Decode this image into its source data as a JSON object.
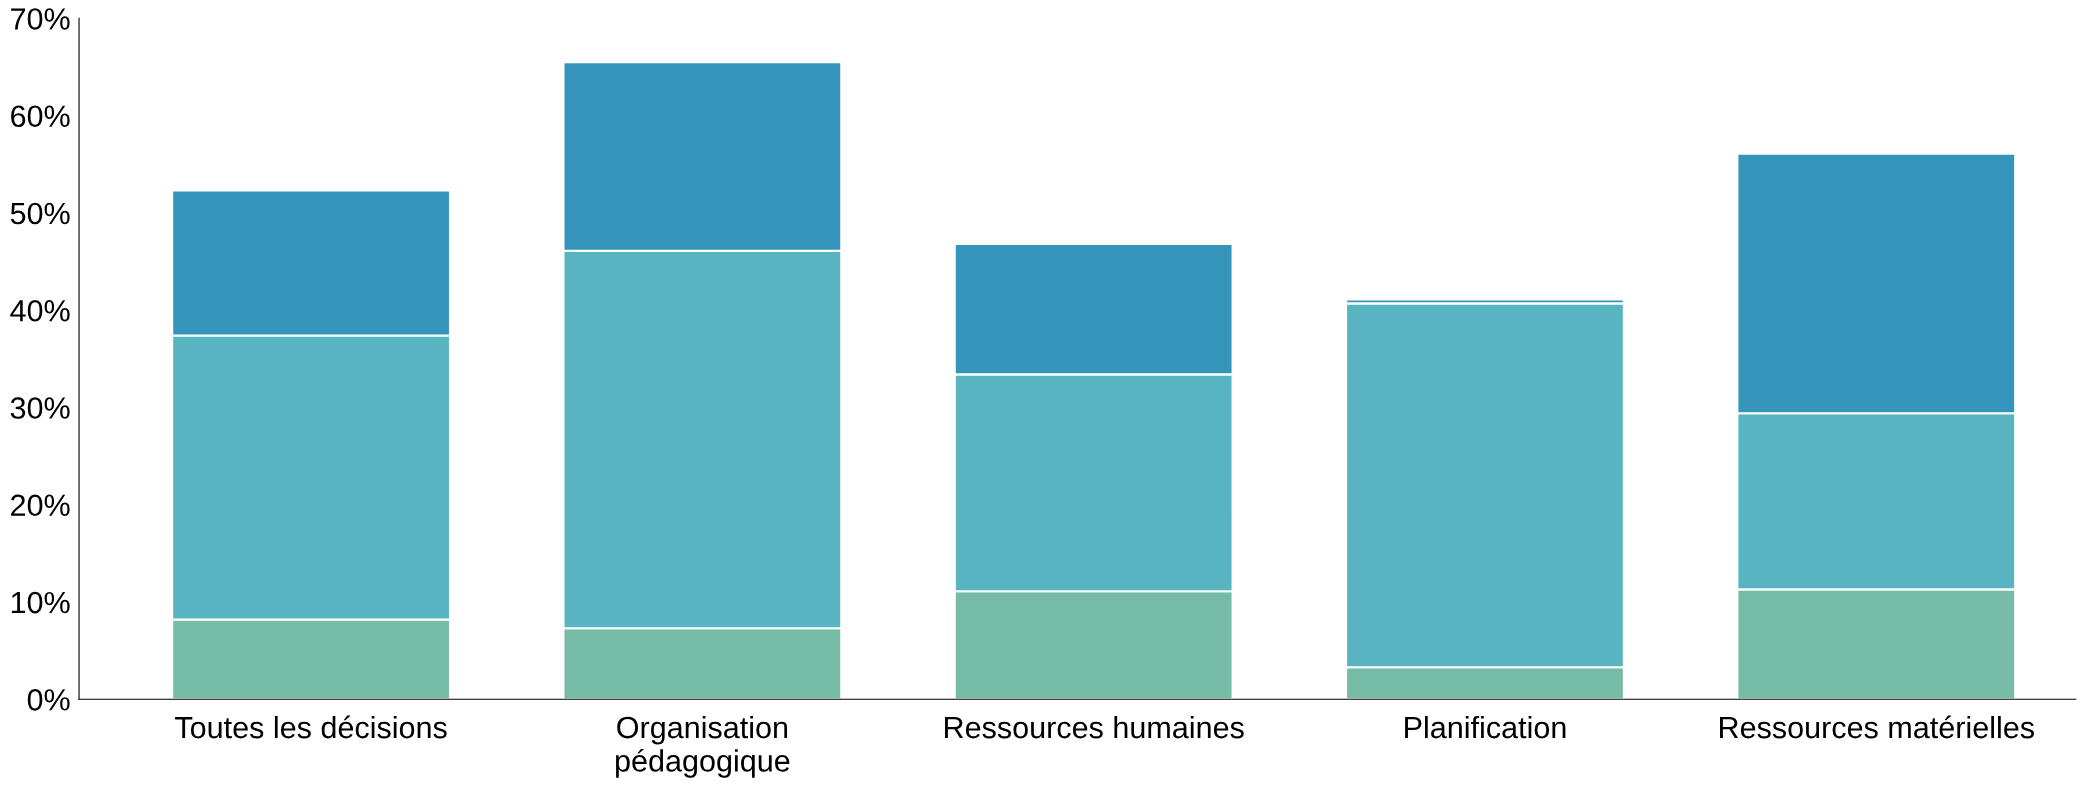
{
  "chart_data": {
    "type": "bar",
    "stacked": true,
    "categories": [
      "Toutes les décisions",
      "Organisation\npédagogique",
      "Ressources humaines",
      "Planification",
      "Ressources matérielles"
    ],
    "series": [
      {
        "color": "#75bba5",
        "values": [
          8.2,
          7.3,
          11.1,
          3.3,
          11.3
        ]
      },
      {
        "color": "#57b4c0",
        "values": [
          29.2,
          38.8,
          22.3,
          37.4,
          18.1
        ]
      },
      {
        "color": "#3594ba",
        "values": [
          14.9,
          19.4,
          13.4,
          0.4,
          26.7
        ]
      }
    ],
    "ylim": [
      0,
      70
    ],
    "yticks": [
      {
        "value": 0,
        "label": "0%"
      },
      {
        "value": 10,
        "label": "10%"
      },
      {
        "value": 20,
        "label": "20%"
      },
      {
        "value": 30,
        "label": "30%"
      },
      {
        "value": 40,
        "label": "40%"
      },
      {
        "value": 50,
        "label": "50%"
      },
      {
        "value": 60,
        "label": "60%"
      },
      {
        "value": 70,
        "label": "70%"
      }
    ],
    "grid": false,
    "legend": false
  }
}
